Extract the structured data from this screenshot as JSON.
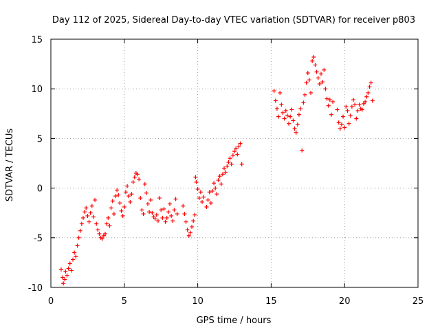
{
  "chart_data": {
    "type": "scatter",
    "title": "Day 112 of 2025, Sidereal Day-to-day VTEC variation (SDTVAR) for receiver p803",
    "xlabel": "GPS time / hours",
    "ylabel": "SDTVAR / TECUs",
    "xlim": [
      0,
      25
    ],
    "ylim": [
      -10,
      15
    ],
    "xticks": [
      "0",
      "5",
      "10",
      "15",
      "20",
      "25"
    ],
    "yticks": [
      "-10",
      "-5",
      "0",
      "5",
      "10",
      "15"
    ],
    "grid": true,
    "marker": "+",
    "series_color": "#ff0000",
    "series": [
      {
        "name": "SDTVAR",
        "points": [
          [
            0.7,
            -8.2
          ],
          [
            0.8,
            -9.0
          ],
          [
            0.85,
            -9.6
          ],
          [
            0.95,
            -9.2
          ],
          [
            1.0,
            -8.4
          ],
          [
            1.1,
            -8.8
          ],
          [
            1.2,
            -8.1
          ],
          [
            1.3,
            -7.6
          ],
          [
            1.4,
            -8.3
          ],
          [
            1.5,
            -7.2
          ],
          [
            1.6,
            -6.5
          ],
          [
            1.7,
            -6.9
          ],
          [
            1.8,
            -5.8
          ],
          [
            1.9,
            -5.0
          ],
          [
            2.0,
            -4.3
          ],
          [
            2.1,
            -3.6
          ],
          [
            2.2,
            -3.0
          ],
          [
            2.3,
            -2.4
          ],
          [
            2.4,
            -2.0
          ],
          [
            2.5,
            -2.8
          ],
          [
            2.6,
            -3.4
          ],
          [
            2.7,
            -2.5
          ],
          [
            2.8,
            -1.8
          ],
          [
            2.9,
            -2.9
          ],
          [
            3.0,
            -1.2
          ],
          [
            3.1,
            -3.6
          ],
          [
            3.2,
            -4.2
          ],
          [
            3.3,
            -4.6
          ],
          [
            3.4,
            -5.0
          ],
          [
            3.5,
            -5.1
          ],
          [
            3.6,
            -4.8
          ],
          [
            3.7,
            -4.6
          ],
          [
            3.8,
            -3.6
          ],
          [
            3.9,
            -3.0
          ],
          [
            4.0,
            -3.8
          ],
          [
            4.1,
            -2.0
          ],
          [
            4.2,
            -1.3
          ],
          [
            4.3,
            -2.6
          ],
          [
            4.4,
            -0.8
          ],
          [
            4.5,
            -0.2
          ],
          [
            4.6,
            -0.7
          ],
          [
            4.7,
            -1.5
          ],
          [
            4.8,
            -2.3
          ],
          [
            4.9,
            -2.8
          ],
          [
            5.0,
            -1.9
          ],
          [
            5.1,
            -0.4
          ],
          [
            5.2,
            0.2
          ],
          [
            5.3,
            -0.8
          ],
          [
            5.4,
            -1.4
          ],
          [
            5.5,
            -0.6
          ],
          [
            5.6,
            0.6
          ],
          [
            5.7,
            1.1
          ],
          [
            5.8,
            1.5
          ],
          [
            5.9,
            1.4
          ],
          [
            6.0,
            0.9
          ],
          [
            6.1,
            -1.0
          ],
          [
            6.2,
            -2.2
          ],
          [
            6.3,
            -2.6
          ],
          [
            6.4,
            0.4
          ],
          [
            6.5,
            -0.5
          ],
          [
            6.6,
            -1.6
          ],
          [
            6.7,
            -2.4
          ],
          [
            6.8,
            -1.2
          ],
          [
            6.9,
            -2.5
          ],
          [
            7.0,
            -2.9
          ],
          [
            7.1,
            -3.1
          ],
          [
            7.2,
            -2.7
          ],
          [
            7.3,
            -3.3
          ],
          [
            7.4,
            -1.0
          ],
          [
            7.5,
            -2.2
          ],
          [
            7.6,
            -3.0
          ],
          [
            7.7,
            -2.1
          ],
          [
            7.8,
            -3.4
          ],
          [
            7.9,
            -3.0
          ],
          [
            8.0,
            -2.4
          ],
          [
            8.1,
            -1.6
          ],
          [
            8.2,
            -2.8
          ],
          [
            8.3,
            -3.3
          ],
          [
            8.4,
            -2.2
          ],
          [
            8.5,
            -1.1
          ],
          [
            8.6,
            -2.6
          ],
          [
            9.0,
            -1.8
          ],
          [
            9.1,
            -2.6
          ],
          [
            9.2,
            -3.4
          ],
          [
            9.3,
            -4.2
          ],
          [
            9.4,
            -4.8
          ],
          [
            9.5,
            -4.5
          ],
          [
            9.6,
            -3.9
          ],
          [
            9.7,
            -3.3
          ],
          [
            9.8,
            -2.7
          ],
          [
            9.85,
            1.1
          ],
          [
            9.9,
            0.6
          ],
          [
            10.0,
            -0.1
          ],
          [
            10.1,
            -1.0
          ],
          [
            10.2,
            -0.4
          ],
          [
            10.3,
            -1.4
          ],
          [
            10.4,
            -0.9
          ],
          [
            10.6,
            -1.9
          ],
          [
            10.7,
            -1.2
          ],
          [
            10.8,
            -0.4
          ],
          [
            10.9,
            -1.5
          ],
          [
            11.0,
            -0.3
          ],
          [
            11.1,
            0.5
          ],
          [
            11.2,
            0.0
          ],
          [
            11.3,
            -0.6
          ],
          [
            11.4,
            0.8
          ],
          [
            11.5,
            1.2
          ],
          [
            11.6,
            0.4
          ],
          [
            11.7,
            1.4
          ],
          [
            11.8,
            2.0
          ],
          [
            11.9,
            1.6
          ],
          [
            12.0,
            2.2
          ],
          [
            12.1,
            2.6
          ],
          [
            12.2,
            3.0
          ],
          [
            12.3,
            2.4
          ],
          [
            12.4,
            3.3
          ],
          [
            12.5,
            3.7
          ],
          [
            12.6,
            4.0
          ],
          [
            12.7,
            3.4
          ],
          [
            12.8,
            4.2
          ],
          [
            12.9,
            4.5
          ],
          [
            13.0,
            2.4
          ],
          [
            15.2,
            9.8
          ],
          [
            15.3,
            8.8
          ],
          [
            15.4,
            8.0
          ],
          [
            15.5,
            7.2
          ],
          [
            15.6,
            9.6
          ],
          [
            15.7,
            8.4
          ],
          [
            15.8,
            7.6
          ],
          [
            15.9,
            7.0
          ],
          [
            16.0,
            7.8
          ],
          [
            16.1,
            7.3
          ],
          [
            16.2,
            6.5
          ],
          [
            16.3,
            7.2
          ],
          [
            16.4,
            7.9
          ],
          [
            16.5,
            6.8
          ],
          [
            16.6,
            6.0
          ],
          [
            16.7,
            5.6
          ],
          [
            16.8,
            6.4
          ],
          [
            16.9,
            7.4
          ],
          [
            17.0,
            8.0
          ],
          [
            17.1,
            3.8
          ],
          [
            17.2,
            8.6
          ],
          [
            17.3,
            9.4
          ],
          [
            17.4,
            10.6
          ],
          [
            17.5,
            11.6
          ],
          [
            17.6,
            10.9
          ],
          [
            17.7,
            9.6
          ],
          [
            17.8,
            12.8
          ],
          [
            17.9,
            13.2
          ],
          [
            18.0,
            12.4
          ],
          [
            18.1,
            11.7
          ],
          [
            18.2,
            11.1
          ],
          [
            18.3,
            10.5
          ],
          [
            18.4,
            11.5
          ],
          [
            18.5,
            10.7
          ],
          [
            18.6,
            11.9
          ],
          [
            18.7,
            10.0
          ],
          [
            18.8,
            9.0
          ],
          [
            18.9,
            8.3
          ],
          [
            19.0,
            8.9
          ],
          [
            19.1,
            7.4
          ],
          [
            19.2,
            8.7
          ],
          [
            19.5,
            7.9
          ],
          [
            19.6,
            6.6
          ],
          [
            19.7,
            6.0
          ],
          [
            19.8,
            6.4
          ],
          [
            19.9,
            7.2
          ],
          [
            20.0,
            6.1
          ],
          [
            20.1,
            8.2
          ],
          [
            20.2,
            7.8
          ],
          [
            20.3,
            6.5
          ],
          [
            20.4,
            7.3
          ],
          [
            20.5,
            8.2
          ],
          [
            20.6,
            8.9
          ],
          [
            20.7,
            8.4
          ],
          [
            20.8,
            7.0
          ],
          [
            20.9,
            7.8
          ],
          [
            21.0,
            8.4
          ],
          [
            21.1,
            8.0
          ],
          [
            21.2,
            7.9
          ],
          [
            21.3,
            8.5
          ],
          [
            21.4,
            8.7
          ],
          [
            21.5,
            9.2
          ],
          [
            21.6,
            9.6
          ],
          [
            21.7,
            10.2
          ],
          [
            21.8,
            10.6
          ],
          [
            21.9,
            8.8
          ]
        ]
      }
    ]
  }
}
